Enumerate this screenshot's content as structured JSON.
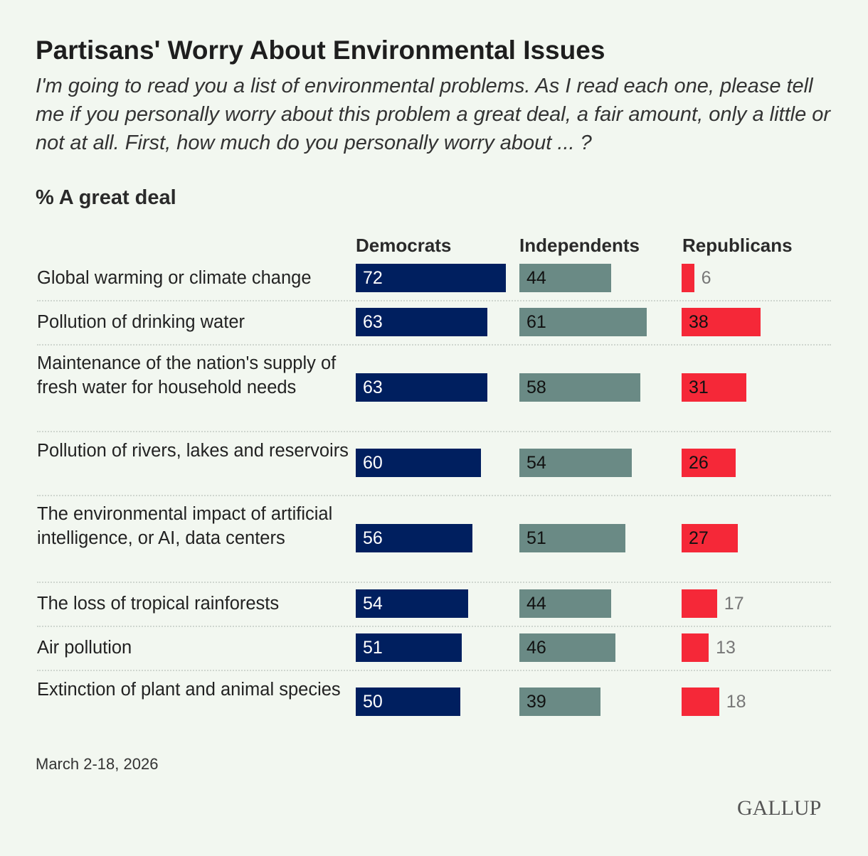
{
  "title": "Partisans' Worry About Environmental Issues",
  "subtitle": "I'm going to read you a list of environmental problems. As I read each one, please tell me if you personally worry about this problem a great deal, a fair amount, only a little or not at all. First, how much do you personally worry about ... ?",
  "unit_label": "% A great deal",
  "date": "March 2-18, 2026",
  "logo": "GALLUP",
  "colors": {
    "Democrats": "#001f5f",
    "Independents": "#6a8a85",
    "Republicans": "#f52838"
  },
  "chart_data": {
    "type": "bar",
    "orientation": "horizontal",
    "categories": [
      "Global warming or climate change",
      "Pollution of drinking water",
      "Maintenance of the nation's supply of fresh water for household needs",
      "Pollution of rivers, lakes and reservoirs",
      "The environmental impact of artificial intelligence, or AI, data centers",
      "The loss of tropical rainforests",
      "Air pollution",
      "Extinction of plant and animal species"
    ],
    "series": [
      {
        "name": "Democrats",
        "values": [
          72,
          63,
          63,
          60,
          56,
          54,
          51,
          50
        ]
      },
      {
        "name": "Independents",
        "values": [
          44,
          61,
          58,
          54,
          51,
          44,
          46,
          39
        ]
      },
      {
        "name": "Republicans",
        "values": [
          6,
          38,
          31,
          26,
          27,
          17,
          13,
          18
        ]
      }
    ],
    "xlim": [
      0,
      100
    ]
  }
}
